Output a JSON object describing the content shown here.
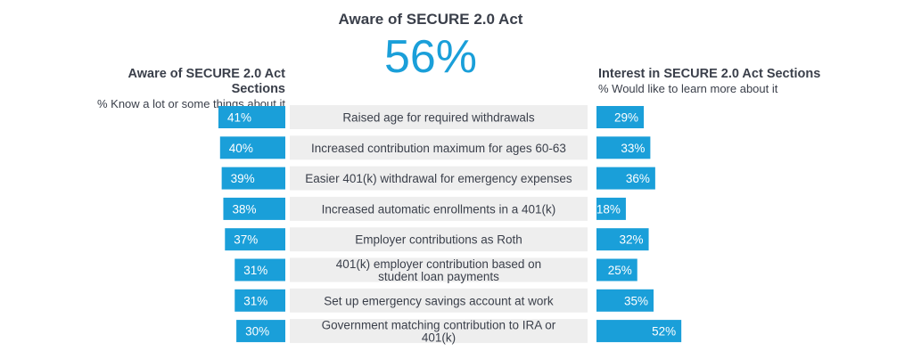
{
  "header": {
    "title": "Aware of SECURE 2.0 Act",
    "value": "56%"
  },
  "left_panel": {
    "title": "Aware of SECURE 2.0 Act Sections",
    "subtitle": "% Know a lot or some things about it"
  },
  "right_panel": {
    "title": "Interest in SECURE 2.0 Act Sections",
    "subtitle": "% Would like to learn more about it"
  },
  "colors": {
    "bar": "#1a9fd9",
    "category_bg": "#eeeeee",
    "text": "#3a3f4a"
  },
  "chart_data": {
    "type": "bar",
    "categories": [
      [
        "Raised age for required withdrawals"
      ],
      [
        "Increased contribution maximum for ages 60-63"
      ],
      [
        "Easier 401(k) withdrawal for emergency expenses"
      ],
      [
        "Increased automatic enrollments in a 401(k)"
      ],
      [
        "Employer contributions as Roth"
      ],
      [
        "401(k) employer contribution based on",
        "student loan payments"
      ],
      [
        "Set up emergency savings account at work"
      ],
      [
        "Government matching contribution to IRA or",
        "401(k)"
      ]
    ],
    "series": [
      {
        "name": "Aware of SECURE 2.0 Act Sections",
        "values": [
          41,
          40,
          39,
          38,
          37,
          31,
          31,
          30
        ],
        "labels": [
          "41%",
          "40%",
          "39%",
          "38%",
          "37%",
          "31%",
          "31%",
          "30%"
        ]
      },
      {
        "name": "Interest in SECURE 2.0 Act Sections",
        "values": [
          29,
          33,
          36,
          18,
          32,
          25,
          35,
          52
        ],
        "labels": [
          "29%",
          "33%",
          "36%",
          "18%",
          "32%",
          "25%",
          "35%",
          "52%"
        ]
      }
    ]
  }
}
